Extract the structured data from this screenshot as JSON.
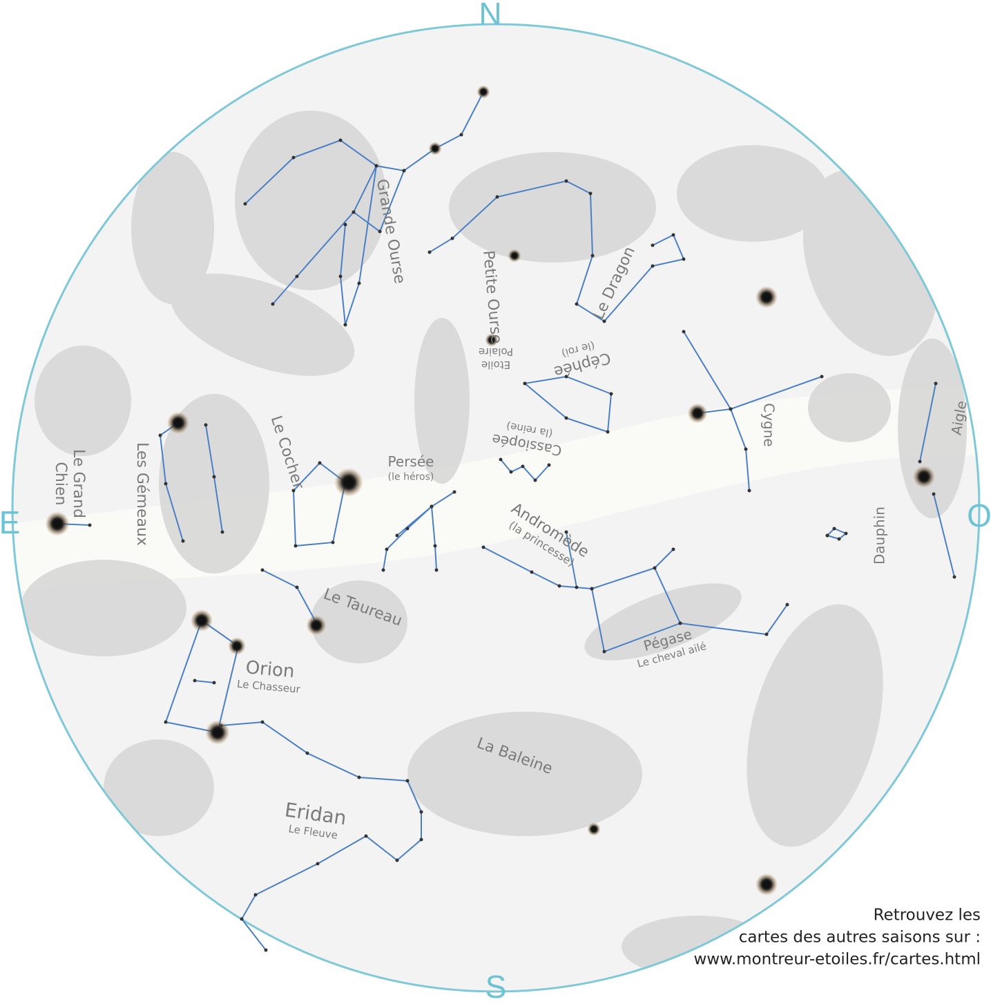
{
  "compass": {
    "north": "N",
    "south": "S",
    "east": "E",
    "west": "O"
  },
  "constellations": [
    {
      "lines": [
        "Grande Ourse"
      ]
    },
    {
      "lines": [
        "Petite Ourse"
      ]
    },
    {
      "lines": [
        "Etoile",
        "Polaire"
      ]
    },
    {
      "lines": [
        "Le Dragon"
      ]
    },
    {
      "lines": [
        "Céphée",
        "(le roi)"
      ]
    },
    {
      "lines": [
        "Cassiopée",
        "(la reine)"
      ]
    },
    {
      "lines": [
        "Persée",
        "(le héros)"
      ]
    },
    {
      "lines": [
        "Le Cocher"
      ]
    },
    {
      "lines": [
        "Les Gémeaux"
      ]
    },
    {
      "lines": [
        "Le Grand",
        "Chien"
      ]
    },
    {
      "lines": [
        "Andromède",
        "(la princesse)"
      ]
    },
    {
      "lines": [
        "Le Taureau"
      ]
    },
    {
      "lines": [
        "Orion",
        "Le Chasseur"
      ]
    },
    {
      "lines": [
        "Pégase",
        "Le cheval ailé"
      ]
    },
    {
      "lines": [
        "Cygne"
      ]
    },
    {
      "lines": [
        "Aigle"
      ]
    },
    {
      "lines": [
        "Dauphin"
      ]
    },
    {
      "lines": [
        "La Baleine"
      ]
    },
    {
      "lines": [
        "Eridan",
        "Le Fleuve"
      ]
    }
  ],
  "footer": {
    "lines": [
      "Retrouvez les",
      "cartes des autres saisons sur :",
      "www.montreur-etoiles.fr/cartes.html"
    ]
  }
}
